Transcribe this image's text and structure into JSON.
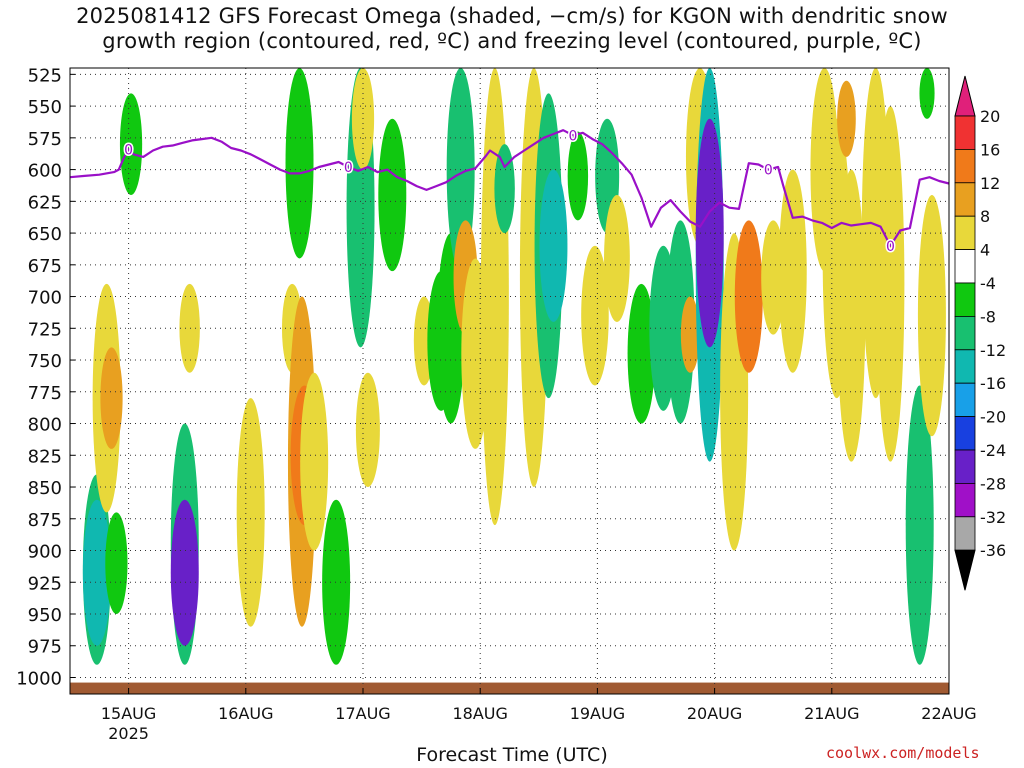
{
  "title": {
    "line1": "2025081412 GFS Forecast Omega (shaded, −cm/s) for KGON with dendritic snow",
    "line2": "growth region (contoured, red, ºC) and freezing level (contoured, purple, ºC)"
  },
  "credit": "coolwx.com/models",
  "chart_data": {
    "type": "heatmap",
    "title": "2025081412 GFS Forecast Omega (shaded, −cm/s) for KGON with dendritic snow growth region (contoured, red, ºC) and freezing level (contoured, purple, ºC)",
    "xlabel": "Forecast Time (UTC)",
    "ylabel": "",
    "x_ticks": [
      "15AUG",
      "16AUG",
      "17AUG",
      "18AUG",
      "19AUG",
      "20AUG",
      "21AUG",
      "22AUG"
    ],
    "x_year_label": "2025",
    "xlim_hours": [
      0,
      180
    ],
    "y_ticks": [
      525,
      550,
      575,
      600,
      625,
      650,
      675,
      700,
      725,
      750,
      775,
      800,
      825,
      850,
      875,
      900,
      925,
      950,
      975,
      1000
    ],
    "ylim": [
      1013,
      520
    ],
    "grid": true,
    "colorbar": {
      "labels": [
        "20",
        "16",
        "12",
        "8",
        "4",
        "-4",
        "-8",
        "-12",
        "-16",
        "-20",
        "-24",
        "-28",
        "-32",
        "-36"
      ],
      "bins": [
        {
          "range": [
            20,
            99
          ],
          "color": "#e0207a"
        },
        {
          "range": [
            16,
            20
          ],
          "color": "#f03232"
        },
        {
          "range": [
            12,
            16
          ],
          "color": "#f07a1a"
        },
        {
          "range": [
            8,
            12
          ],
          "color": "#e8a020"
        },
        {
          "range": [
            4,
            8
          ],
          "color": "#e8d83a"
        },
        {
          "range": [
            -4,
            4
          ],
          "color": "#ffffff"
        },
        {
          "range": [
            -8,
            -4
          ],
          "color": "#10c810"
        },
        {
          "range": [
            -12,
            -8
          ],
          "color": "#18c070"
        },
        {
          "range": [
            -16,
            -12
          ],
          "color": "#10b8b0"
        },
        {
          "range": [
            -20,
            -16
          ],
          "color": "#18a0e8"
        },
        {
          "range": [
            -24,
            -20
          ],
          "color": "#1840e0"
        },
        {
          "range": [
            -28,
            -24
          ],
          "color": "#6820c8"
        },
        {
          "range": [
            -32,
            -28
          ],
          "color": "#a010c8"
        },
        {
          "range": [
            -36,
            -32
          ],
          "color": "#a8a8a8"
        },
        {
          "range": [
            -99,
            -36
          ],
          "color": "#000000"
        }
      ]
    },
    "freezing_level": {
      "label": "0",
      "color": "#9a10c8",
      "points": [
        [
          0,
          606
        ],
        [
          3,
          605
        ],
        [
          6,
          604
        ],
        [
          9,
          602
        ],
        [
          10,
          600
        ],
        [
          11,
          591
        ],
        [
          12,
          584
        ],
        [
          13,
          588
        ],
        [
          15,
          590
        ],
        [
          17,
          585
        ],
        [
          19,
          582
        ],
        [
          21,
          581
        ],
        [
          23,
          579
        ],
        [
          25,
          577
        ],
        [
          27,
          576
        ],
        [
          29,
          575
        ],
        [
          31,
          578
        ],
        [
          33,
          583
        ],
        [
          35,
          585
        ],
        [
          37,
          588
        ],
        [
          39,
          592
        ],
        [
          41,
          596
        ],
        [
          43,
          600
        ],
        [
          45,
          603
        ],
        [
          47,
          603
        ],
        [
          49,
          601
        ],
        [
          51,
          598
        ],
        [
          53,
          596
        ],
        [
          55,
          594
        ],
        [
          57,
          598
        ],
        [
          59,
          601
        ],
        [
          61,
          598
        ],
        [
          63,
          602
        ],
        [
          65,
          600
        ],
        [
          67,
          606
        ],
        [
          69,
          609
        ],
        [
          71,
          613
        ],
        [
          73,
          616
        ],
        [
          75,
          613
        ],
        [
          77,
          610
        ],
        [
          79,
          605
        ],
        [
          81,
          601
        ],
        [
          83,
          599
        ],
        [
          85,
          590
        ],
        [
          86,
          585
        ],
        [
          88,
          590
        ],
        [
          89,
          598
        ],
        [
          91,
          590
        ],
        [
          93,
          585
        ],
        [
          95,
          580
        ],
        [
          97,
          575
        ],
        [
          99,
          572
        ],
        [
          101,
          569
        ],
        [
          103,
          573
        ],
        [
          105,
          571
        ],
        [
          107,
          576
        ],
        [
          109,
          580
        ],
        [
          111,
          587
        ],
        [
          113,
          595
        ],
        [
          115,
          604
        ],
        [
          117,
          622
        ],
        [
          119,
          645
        ],
        [
          121,
          630
        ],
        [
          123,
          624
        ],
        [
          125,
          633
        ],
        [
          127,
          641
        ],
        [
          129,
          645
        ],
        [
          131,
          633
        ],
        [
          133,
          626
        ],
        [
          135,
          630
        ],
        [
          137,
          631
        ],
        [
          139,
          595
        ],
        [
          141,
          596
        ],
        [
          143,
          600
        ],
        [
          145,
          598
        ],
        [
          146,
          612
        ],
        [
          148,
          638
        ],
        [
          150,
          637
        ],
        [
          152,
          640
        ],
        [
          154,
          642
        ],
        [
          156,
          646
        ],
        [
          158,
          642
        ],
        [
          160,
          644
        ],
        [
          162,
          643
        ],
        [
          164,
          642
        ],
        [
          166,
          645
        ],
        [
          168,
          660
        ],
        [
          170,
          648
        ],
        [
          172,
          646
        ],
        [
          174,
          608
        ],
        [
          176,
          606
        ],
        [
          178,
          609
        ],
        [
          180,
          611
        ]
      ]
    },
    "omega_regions": [
      {
        "t": 5.5,
        "p_top": 840,
        "p_bot": 990,
        "value": -12
      },
      {
        "t": 5.5,
        "p_top": 860,
        "p_bot": 975,
        "value": -16
      },
      {
        "t": 7.5,
        "p_top": 690,
        "p_bot": 870,
        "value": 6
      },
      {
        "t": 8.5,
        "p_top": 740,
        "p_bot": 820,
        "value": 9
      },
      {
        "t": 9.5,
        "p_top": 870,
        "p_bot": 950,
        "value": -6
      },
      {
        "t": 12.5,
        "p_top": 540,
        "p_bot": 620,
        "value": -6
      },
      {
        "t": 23.5,
        "p_top": 800,
        "p_bot": 990,
        "value": -10
      },
      {
        "t": 23.5,
        "p_top": 860,
        "p_bot": 975,
        "value": -28
      },
      {
        "t": 24.5,
        "p_top": 690,
        "p_bot": 760,
        "value": 5
      },
      {
        "t": 37.0,
        "p_top": 780,
        "p_bot": 960,
        "value": 5
      },
      {
        "t": 45.5,
        "p_top": 690,
        "p_bot": 760,
        "value": 5
      },
      {
        "t": 47.0,
        "p_top": 520,
        "p_bot": 670,
        "value": -6
      },
      {
        "t": 47.5,
        "p_top": 700,
        "p_bot": 960,
        "value": 9
      },
      {
        "t": 48.0,
        "p_top": 770,
        "p_bot": 880,
        "value": 14
      },
      {
        "t": 50.0,
        "p_top": 760,
        "p_bot": 900,
        "value": 6
      },
      {
        "t": 54.5,
        "p_top": 860,
        "p_bot": 990,
        "value": -8
      },
      {
        "t": 59.5,
        "p_top": 520,
        "p_bot": 740,
        "value": -10
      },
      {
        "t": 60.0,
        "p_top": 520,
        "p_bot": 600,
        "value": 6
      },
      {
        "t": 61.0,
        "p_top": 760,
        "p_bot": 850,
        "value": 7
      },
      {
        "t": 66.0,
        "p_top": 560,
        "p_bot": 680,
        "value": -7
      },
      {
        "t": 72.5,
        "p_top": 700,
        "p_bot": 770,
        "value": 5
      },
      {
        "t": 76.0,
        "p_top": 680,
        "p_bot": 790,
        "value": -8
      },
      {
        "t": 78.0,
        "p_top": 650,
        "p_bot": 800,
        "value": -6
      },
      {
        "t": 80.0,
        "p_top": 520,
        "p_bot": 680,
        "value": -9
      },
      {
        "t": 81.0,
        "p_top": 640,
        "p_bot": 730,
        "value": 10
      },
      {
        "t": 83.0,
        "p_top": 670,
        "p_bot": 820,
        "value": 7
      },
      {
        "t": 87.0,
        "p_top": 520,
        "p_bot": 880,
        "value": 5
      },
      {
        "t": 89.0,
        "p_top": 580,
        "p_bot": 650,
        "value": -9
      },
      {
        "t": 95.5,
        "p_top": 700,
        "p_bot": 790,
        "value": 5
      },
      {
        "t": 95.0,
        "p_top": 520,
        "p_bot": 850,
        "value": 7
      },
      {
        "t": 98.0,
        "p_top": 540,
        "p_bot": 780,
        "value": -11
      },
      {
        "t": 99.0,
        "p_top": 600,
        "p_bot": 720,
        "value": -14
      },
      {
        "t": 104.0,
        "p_top": 570,
        "p_bot": 640,
        "value": -8
      },
      {
        "t": 107.5,
        "p_top": 660,
        "p_bot": 770,
        "value": 6
      },
      {
        "t": 110.0,
        "p_top": 560,
        "p_bot": 650,
        "value": -9
      },
      {
        "t": 112.0,
        "p_top": 620,
        "p_bot": 720,
        "value": 6
      },
      {
        "t": 117.0,
        "p_top": 690,
        "p_bot": 800,
        "value": -8
      },
      {
        "t": 121.5,
        "p_top": 660,
        "p_bot": 790,
        "value": -9
      },
      {
        "t": 125.0,
        "p_top": 640,
        "p_bot": 800,
        "value": -11
      },
      {
        "t": 127.0,
        "p_top": 700,
        "p_bot": 760,
        "value": 8
      },
      {
        "t": 129.0,
        "p_top": 520,
        "p_bot": 660,
        "value": 6
      },
      {
        "t": 131.0,
        "p_top": 520,
        "p_bot": 830,
        "value": -14
      },
      {
        "t": 131.0,
        "p_top": 560,
        "p_bot": 740,
        "value": -26
      },
      {
        "t": 136.0,
        "p_top": 650,
        "p_bot": 900,
        "value": 7
      },
      {
        "t": 139.0,
        "p_top": 640,
        "p_bot": 760,
        "value": 13
      },
      {
        "t": 144.0,
        "p_top": 640,
        "p_bot": 730,
        "value": 5
      },
      {
        "t": 148.0,
        "p_top": 600,
        "p_bot": 760,
        "value": 5
      },
      {
        "t": 154.5,
        "p_top": 520,
        "p_bot": 680,
        "value": 6
      },
      {
        "t": 157.0,
        "p_top": 560,
        "p_bot": 780,
        "value": 5
      },
      {
        "t": 159.0,
        "p_top": 530,
        "p_bot": 590,
        "value": 9
      },
      {
        "t": 160.0,
        "p_top": 600,
        "p_bot": 830,
        "value": 6
      },
      {
        "t": 165.0,
        "p_top": 520,
        "p_bot": 780,
        "value": 5
      },
      {
        "t": 168.0,
        "p_top": 550,
        "p_bot": 830,
        "value": 6
      },
      {
        "t": 174.0,
        "p_top": 770,
        "p_bot": 990,
        "value": -10
      },
      {
        "t": 175.5,
        "p_top": 520,
        "p_bot": 560,
        "value": -7
      },
      {
        "t": 176.5,
        "p_top": 620,
        "p_bot": 810,
        "value": 6
      }
    ],
    "surface_color": "#a05a32"
  }
}
